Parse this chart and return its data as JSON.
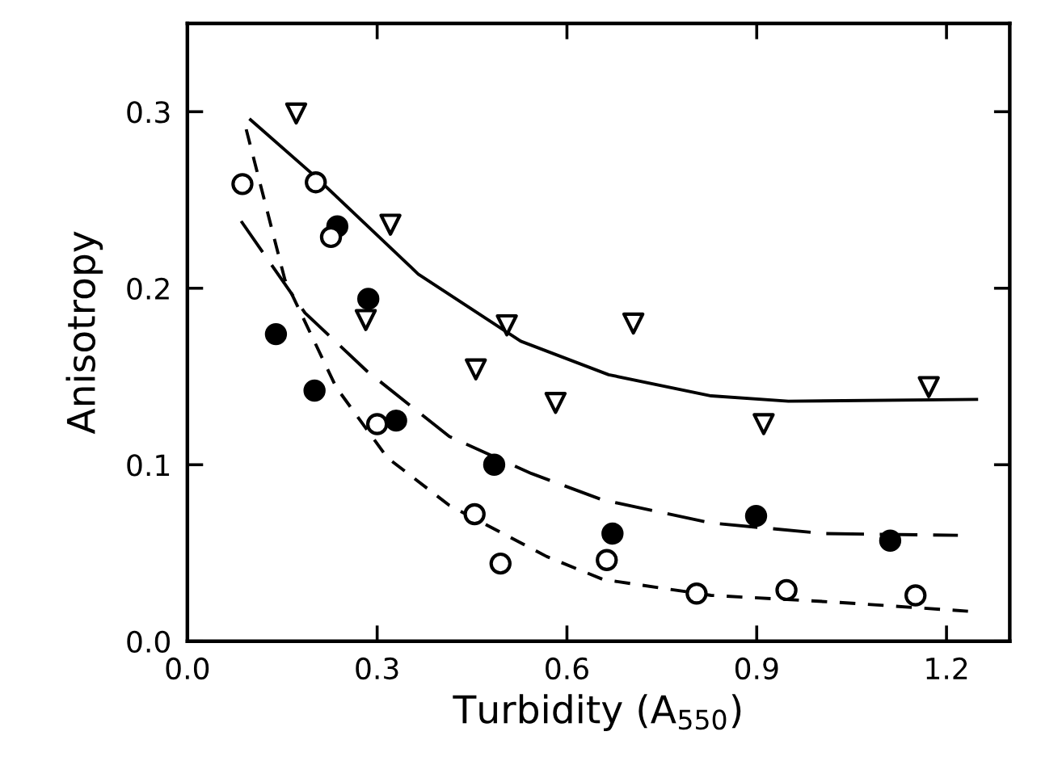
{
  "chart_data": {
    "type": "scatter",
    "xlabel": "Turbidity (A$_{550}$)",
    "ylabel": "Anisotropy",
    "xlim": [
      0,
      1.3
    ],
    "ylim": [
      0,
      0.35
    ],
    "xticks": [
      "0.0",
      0.3,
      0.6,
      0.9,
      1.2
    ],
    "yticks": [
      {
        "value": 0,
        "label": "0.0"
      },
      0.1,
      0.2,
      0.3
    ],
    "grid": false,
    "legend": false,
    "series": [
      {
        "marker": "triangle",
        "color": "#ffffff",
        "x": [
          0.172,
          0.321,
          0.282,
          0.505,
          0.456,
          0.582,
          0.705,
          0.911,
          1.172
        ],
        "values": [
          0.299,
          0.236,
          0.182,
          0.179,
          0.154,
          0.135,
          0.18,
          0.123,
          0.144
        ]
      },
      {
        "marker": "circle",
        "color": "#000000",
        "x": [
          0.14,
          0.201,
          0.237,
          0.286,
          0.33,
          0.485,
          0.672,
          0.899,
          1.111
        ],
        "values": [
          0.174,
          0.142,
          0.235,
          0.194,
          0.125,
          0.1,
          0.061,
          0.071,
          0.057
        ]
      },
      {
        "marker": "circle",
        "color": "#ffffff",
        "x": [
          0.087,
          0.203,
          0.227,
          0.3,
          0.454,
          0.495,
          0.663,
          0.805,
          0.947,
          1.151
        ],
        "values": [
          0.259,
          0.26,
          0.229,
          0.123,
          0.072,
          0.044,
          0.046,
          0.027,
          0.029,
          0.026
        ]
      },
      {
        "type": "line",
        "line_style": "solid",
        "color": "#000000",
        "x": [
          0.098,
          0.203,
          0.365,
          0.527,
          0.666,
          0.828,
          0.95,
          1.25
        ],
        "values": [
          0.296,
          0.263,
          0.208,
          0.17,
          0.151,
          0.139,
          0.136,
          0.137
        ]
      },
      {
        "type": "line",
        "line_style": "dashed",
        "color": "#000000",
        "x": [
          0.085,
          0.186,
          0.284,
          0.414,
          0.544,
          0.657,
          0.828,
          1.007,
          1.218
        ],
        "values": [
          0.238,
          0.186,
          0.153,
          0.116,
          0.095,
          0.08,
          0.067,
          0.061,
          0.06
        ]
      },
      {
        "type": "line",
        "line_style": "dotted",
        "color": "#000000",
        "x": [
          0.093,
          0.154,
          0.235,
          0.316,
          0.414,
          0.568,
          0.657,
          0.828,
          1.031,
          1.234
        ],
        "values": [
          0.29,
          0.205,
          0.144,
          0.104,
          0.077,
          0.048,
          0.035,
          0.026,
          0.022,
          0.017
        ]
      }
    ]
  }
}
